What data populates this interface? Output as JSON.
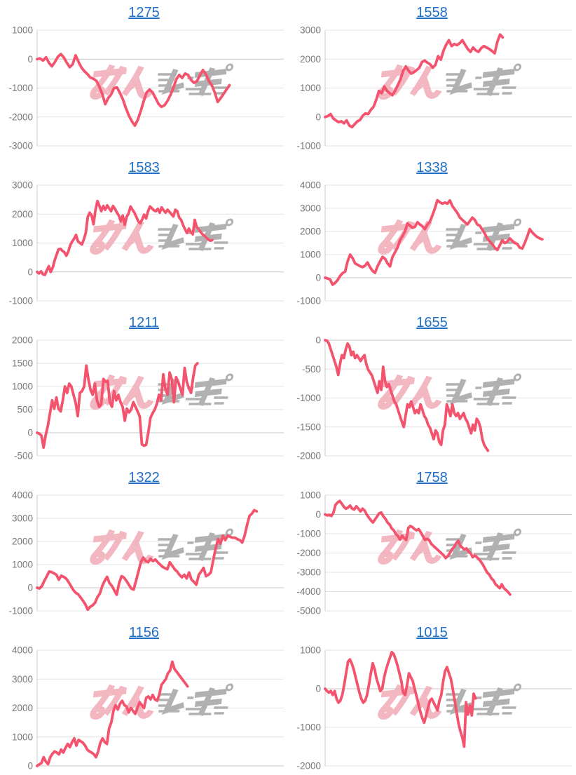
{
  "page": {
    "background": "#ffffff"
  },
  "watermark": {
    "name": "minrepo-watermark",
    "pink_text": "みん",
    "gray_text": "レポ",
    "pink_color": "#f0a6b2",
    "gray_color": "#a9a9a9"
  },
  "chart_style": {
    "line_color": "#f4536e",
    "grid_color": "#e3e3e3",
    "baseline_color": "#c6c6c6",
    "axis_color": "#c9c9c9",
    "label_color": "#787878",
    "title_color": "#1f6fc6"
  },
  "chart_data": [
    {
      "type": "line",
      "title": "1275",
      "xlabel": "",
      "ylabel": "",
      "ylim": [
        -3000,
        1000
      ],
      "yticks": [
        1000,
        0,
        -1000,
        -2000,
        -3000
      ],
      "grid": true,
      "x_span_fraction": 0.78,
      "values": [
        0,
        20,
        -50,
        60,
        -130,
        -250,
        -100,
        80,
        170,
        60,
        -120,
        -280,
        -180,
        130,
        -100,
        -300,
        -420,
        -520,
        -640,
        -680,
        -750,
        -950,
        -1200,
        -1560,
        -1350,
        -1220,
        -1000,
        -980,
        -1180,
        -1400,
        -1700,
        -1950,
        -2150,
        -2300,
        -2100,
        -1800,
        -1450,
        -1150,
        -1050,
        -1150,
        -1350,
        -1550,
        -1650,
        -1600,
        -1450,
        -1250,
        -1000,
        -700,
        -550,
        -650,
        -500,
        -550,
        -720,
        -820,
        -760,
        -560,
        -380,
        -520,
        -750,
        -900,
        -1150,
        -1480,
        -1350,
        -1200,
        -1050,
        -900
      ]
    },
    {
      "type": "line",
      "title": "1558",
      "xlabel": "",
      "ylabel": "",
      "ylim": [
        -1000,
        3000
      ],
      "yticks": [
        3000,
        2000,
        1000,
        0,
        -1000
      ],
      "grid": true,
      "x_span_fraction": 0.72,
      "values": [
        0,
        30,
        100,
        -50,
        -120,
        -180,
        -150,
        -220,
        -120,
        -300,
        -350,
        -250,
        -150,
        -100,
        50,
        120,
        100,
        250,
        350,
        600,
        900,
        820,
        1050,
        900,
        820,
        750,
        900,
        1100,
        1300,
        1600,
        1750,
        1600,
        1500,
        1550,
        1620,
        1700,
        1900,
        1950,
        1880,
        1820,
        1700,
        1800,
        2100,
        1980,
        2300,
        2500,
        2650,
        2450,
        2520,
        2480,
        2550,
        2650,
        2500,
        2350,
        2250,
        2400,
        2300,
        2250,
        2380,
        2450,
        2400,
        2350,
        2280,
        2200,
        2600,
        2850,
        2750
      ]
    },
    {
      "type": "line",
      "title": "1583",
      "xlabel": "",
      "ylabel": "",
      "ylim": [
        -1000,
        3000
      ],
      "yticks": [
        3000,
        2000,
        1000,
        0,
        -1000
      ],
      "grid": true,
      "x_span_fraction": 0.71,
      "values": [
        0,
        -50,
        20,
        -80,
        -100,
        60,
        200,
        0,
        150,
        400,
        600,
        780,
        800,
        730,
        680,
        560,
        700,
        920,
        1050,
        1150,
        1280,
        1060,
        1000,
        950,
        1120,
        1350,
        1900,
        2050,
        1950,
        1650,
        2150,
        2450,
        2280,
        2100,
        2280,
        2150,
        2300,
        2200,
        2100,
        2280,
        2180,
        2050,
        1950,
        1750,
        1950,
        1630,
        1900,
        2020,
        2260,
        2150,
        2050,
        1900,
        1750,
        1680,
        1820,
        1980,
        1850,
        2100,
        2260,
        2200,
        2130,
        2100,
        2180,
        2050,
        2230,
        2130,
        2050,
        2150,
        2080,
        2000,
        1920,
        2150,
        2100,
        1880,
        1800,
        1620,
        1480,
        1350,
        1500,
        1380,
        1300,
        1800,
        1550,
        1480,
        1380,
        1300,
        1250,
        1180,
        1120,
        1080,
        1100
      ]
    },
    {
      "type": "line",
      "title": "1338",
      "xlabel": "",
      "ylabel": "",
      "ylim": [
        -1000,
        4000
      ],
      "yticks": [
        4000,
        3000,
        2000,
        1000,
        0,
        -1000
      ],
      "grid": true,
      "x_span_fraction": 0.88,
      "values": [
        0,
        -30,
        -80,
        -300,
        -220,
        -100,
        80,
        200,
        260,
        700,
        1000,
        850,
        620,
        560,
        500,
        460,
        520,
        660,
        450,
        300,
        210,
        500,
        700,
        900,
        820,
        620,
        490,
        900,
        1100,
        1300,
        1620,
        1800,
        2000,
        2350,
        2250,
        2160,
        2200,
        2400,
        2300,
        2220,
        2100,
        2300,
        2420,
        2700,
        3000,
        3350,
        3260,
        3200,
        3250,
        3200,
        3340,
        3100,
        2950,
        2800,
        2600,
        2500,
        2400,
        2300,
        2450,
        2600,
        2500,
        2300,
        2250,
        2080,
        1900,
        1700,
        1560,
        1450,
        1300,
        1200,
        1400,
        1620,
        1500,
        1560,
        1700,
        1600,
        1500,
        1460,
        1300,
        1260,
        1500,
        1780,
        2100,
        1960,
        1850,
        1760,
        1700,
        1660
      ]
    },
    {
      "type": "line",
      "title": "1211",
      "xlabel": "",
      "ylabel": "",
      "ylim": [
        -500,
        2000
      ],
      "yticks": [
        2000,
        1500,
        1000,
        500,
        0,
        -500
      ],
      "grid": true,
      "x_span_fraction": 0.65,
      "values": [
        0,
        -20,
        -60,
        -320,
        -50,
        150,
        420,
        700,
        520,
        760,
        520,
        460,
        700,
        1000,
        860,
        1060,
        1000,
        820,
        650,
        360,
        860,
        900,
        1000,
        1450,
        1150,
        920,
        820,
        1060,
        700,
        560,
        620,
        1160,
        1100,
        1120,
        660,
        560,
        900,
        700,
        820,
        660,
        560,
        260,
        520,
        440,
        500,
        660,
        560,
        460,
        350,
        -250,
        -280,
        -260,
        0,
        320,
        420,
        500,
        620,
        820,
        700,
        1260,
        950,
        820,
        1300,
        1150,
        660,
        1200,
        1100,
        950,
        820,
        1400,
        1100,
        960,
        860,
        1200,
        1450,
        1500
      ]
    },
    {
      "type": "line",
      "title": "1655",
      "xlabel": "",
      "ylabel": "",
      "ylim": [
        -2000,
        0
      ],
      "yticks": [
        0,
        -500,
        -1000,
        -1500,
        -2000
      ],
      "grid": true,
      "x_span_fraction": 0.66,
      "values": [
        0,
        -10,
        -60,
        -160,
        -260,
        -360,
        -460,
        -600,
        -400,
        -260,
        -310,
        -160,
        -60,
        -110,
        -260,
        -200,
        -310,
        -260,
        -310,
        -360,
        -300,
        -260,
        -410,
        -510,
        -560,
        -610,
        -710,
        -810,
        -910,
        -710,
        -860,
        -460,
        -710,
        -810,
        -760,
        -860,
        -960,
        -1060,
        -1110,
        -1210,
        -1310,
        -1410,
        -1500,
        -1310,
        -1110,
        -1160,
        -1060,
        -1160,
        -1260,
        -1210,
        -1260,
        -1110,
        -1210,
        -1310,
        -1360,
        -1460,
        -1510,
        -1610,
        -1710,
        -1560,
        -1610,
        -1760,
        -1810,
        -1560,
        -1460,
        -1110,
        -1210,
        -1310,
        -1110,
        -1260,
        -1310,
        -1260,
        -1360,
        -1310,
        -1260,
        -1360,
        -1410,
        -1510,
        -1610,
        -1460,
        -1560,
        -1360,
        -1410,
        -1510,
        -1710,
        -1810,
        -1860,
        -1910
      ]
    },
    {
      "type": "line",
      "title": "1322",
      "xlabel": "",
      "ylabel": "",
      "ylim": [
        -1000,
        4000
      ],
      "yticks": [
        4000,
        3000,
        2000,
        1000,
        0,
        -1000
      ],
      "grid": true,
      "x_span_fraction": 0.89,
      "values": [
        0,
        -30,
        80,
        300,
        500,
        700,
        680,
        620,
        560,
        350,
        520,
        470,
        400,
        250,
        80,
        -100,
        -220,
        -280,
        -420,
        -560,
        -720,
        -950,
        -820,
        -760,
        -650,
        -400,
        -250,
        80,
        300,
        470,
        200,
        80,
        -120,
        -300,
        200,
        500,
        440,
        300,
        130,
        -30,
        -80,
        300,
        700,
        1100,
        1300,
        1160,
        1100,
        1250,
        1150,
        1220,
        1100,
        1000,
        900,
        850,
        800,
        1100,
        950,
        800,
        700,
        560,
        450,
        560,
        400,
        660,
        350,
        250,
        130,
        560,
        700,
        860,
        500,
        560,
        660,
        1200,
        1700,
        2100,
        1900,
        2250,
        2060,
        2250,
        2200,
        2160,
        2160,
        2100,
        2060,
        1950,
        2250,
        2700,
        3100,
        3200,
        3350,
        3300
      ]
    },
    {
      "type": "line",
      "title": "1758",
      "xlabel": "",
      "ylabel": "",
      "ylim": [
        -5000,
        1000
      ],
      "yticks": [
        1000,
        0,
        -1000,
        -2000,
        -3000,
        -4000,
        -5000
      ],
      "grid": true,
      "x_span_fraction": 0.75,
      "values": [
        0,
        -50,
        -20,
        -80,
        100,
        500,
        620,
        700,
        560,
        400,
        300,
        360,
        460,
        300,
        260,
        420,
        300,
        160,
        300,
        200,
        0,
        -160,
        -300,
        -420,
        -260,
        -100,
        60,
        100,
        -100,
        -220,
        -420,
        -520,
        -720,
        -820,
        -1020,
        -1120,
        -1300,
        -1100,
        -1220,
        -1320,
        -700,
        -600,
        -660,
        -760,
        -820,
        -760,
        -920,
        -1120,
        -1320,
        -1260,
        -1320,
        -1520,
        -1620,
        -1720,
        -1820,
        -1920,
        -2020,
        -2120,
        -2260,
        -2160,
        -2000,
        -1800,
        -1700,
        -1500,
        -1360,
        -1620,
        -1720,
        -1820,
        -1760,
        -1920,
        -2020,
        -2220,
        -2120,
        -2220,
        -2320,
        -2460,
        -2620,
        -2820,
        -3020,
        -3120,
        -3320,
        -3420,
        -3620,
        -3720,
        -3820,
        -3620,
        -3820,
        -3920,
        -4020,
        -4150
      ]
    },
    {
      "type": "line",
      "title": "1156",
      "xlabel": "",
      "ylabel": "",
      "ylim": [
        0,
        4000
      ],
      "yticks": [
        4000,
        3000,
        2000,
        1000,
        0
      ],
      "grid": true,
      "x_span_fraction": 0.61,
      "values": [
        0,
        50,
        100,
        300,
        150,
        60,
        300,
        420,
        500,
        460,
        400,
        560,
        460,
        620,
        760,
        650,
        820,
        950,
        700,
        900,
        850,
        800,
        700,
        560,
        500,
        460,
        400,
        300,
        500,
        800,
        950,
        820,
        760,
        1300,
        1500,
        1900,
        2100,
        1950,
        2150,
        2250,
        2100,
        2050,
        1850,
        2000,
        1900,
        1800,
        2000,
        2200,
        2100,
        2000,
        2350,
        2400,
        2300,
        2450,
        2300,
        2250,
        2450,
        2800,
        2900,
        3000,
        3200,
        3300,
        3600,
        3350,
        3250,
        3150,
        3050,
        2950,
        2850,
        2750
      ]
    },
    {
      "type": "line",
      "title": "1015",
      "xlabel": "",
      "ylabel": "",
      "ylim": [
        -2000,
        1000
      ],
      "yticks": [
        1000,
        0,
        -1000,
        -2000
      ],
      "grid": true,
      "x_span_fraction": 0.61,
      "values": [
        0,
        -60,
        -100,
        -60,
        -160,
        -60,
        -260,
        -360,
        -310,
        -160,
        100,
        400,
        700,
        760,
        650,
        500,
        300,
        100,
        -100,
        -260,
        -360,
        -310,
        -160,
        100,
        400,
        660,
        500,
        260,
        100,
        -60,
        0,
        300,
        500,
        660,
        800,
        950,
        900,
        760,
        600,
        400,
        200,
        -100,
        -160,
        100,
        400,
        300,
        200,
        0,
        -200,
        -400,
        -600,
        -760,
        -880,
        -700,
        -500,
        -310,
        -260,
        -360,
        -460,
        -560,
        -310,
        -160,
        200,
        460,
        560,
        400,
        260,
        0,
        -300,
        -600,
        -900,
        -1100,
        -1260,
        -1500,
        -350,
        -670,
        -440,
        -690,
        -130,
        -250
      ]
    }
  ]
}
